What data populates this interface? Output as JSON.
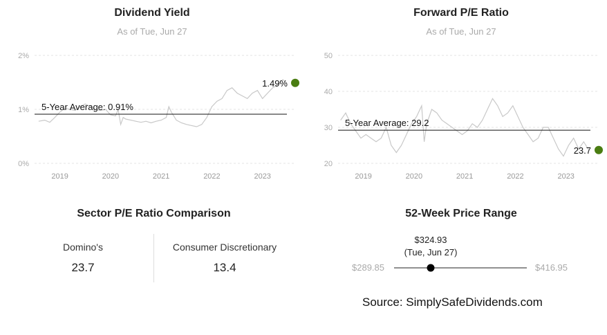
{
  "chart_data": [
    {
      "type": "line",
      "title": "Dividend Yield",
      "subtitle": "As of Tue, Jun 27",
      "x_ticks": [
        "2019",
        "2020",
        "2021",
        "2022",
        "2023"
      ],
      "x_range": [
        2018.5,
        2023.55
      ],
      "y_ticks": [
        "0%",
        "1%",
        "2%"
      ],
      "ylim": [
        0,
        2
      ],
      "average_label": "5-Year Average: 0.91%",
      "average_value": 0.91,
      "current_label": "1.49%",
      "current_value": 1.49,
      "current_color": "#4a7d12",
      "series": [
        {
          "x": [
            2018.58,
            2018.7,
            2018.8,
            2018.9,
            2019.0,
            2019.1,
            2019.2,
            2019.3,
            2019.4,
            2019.5,
            2019.6,
            2019.7,
            2019.8,
            2019.9,
            2020.0,
            2020.1,
            2020.15,
            2020.2,
            2020.25,
            2020.3,
            2020.4,
            2020.5,
            2020.6,
            2020.7,
            2020.8,
            2020.9,
            2021.0,
            2021.1,
            2021.15,
            2021.2,
            2021.3,
            2021.4,
            2021.5,
            2021.6,
            2021.7,
            2021.8,
            2021.9,
            2022.0,
            2022.1,
            2022.2,
            2022.3,
            2022.4,
            2022.5,
            2022.6,
            2022.7,
            2022.8,
            2022.9,
            2023.0,
            2023.1,
            2023.2,
            2023.3,
            2023.4,
            2023.48
          ],
          "values": [
            0.78,
            0.8,
            0.76,
            0.85,
            0.95,
            1.02,
            1.0,
            0.98,
            1.05,
            1.1,
            1.05,
            1.0,
            0.98,
            1.0,
            0.9,
            0.88,
            1.0,
            0.72,
            0.85,
            0.82,
            0.8,
            0.78,
            0.76,
            0.78,
            0.75,
            0.78,
            0.8,
            0.85,
            1.05,
            0.95,
            0.8,
            0.75,
            0.72,
            0.7,
            0.68,
            0.72,
            0.85,
            1.05,
            1.15,
            1.2,
            1.35,
            1.4,
            1.3,
            1.25,
            1.2,
            1.3,
            1.35,
            1.2,
            1.3,
            1.4,
            1.45,
            1.55,
            1.49
          ]
        }
      ]
    },
    {
      "type": "line",
      "title": "Forward P/E Ratio",
      "subtitle": "As of Tue, Jun 27",
      "x_ticks": [
        "2019",
        "2020",
        "2021",
        "2022",
        "2023"
      ],
      "x_range": [
        2018.5,
        2023.55
      ],
      "y_ticks": [
        "20",
        "30",
        "40",
        "50"
      ],
      "ylim": [
        20,
        50
      ],
      "average_label": "5-Year Average: 29.2",
      "average_value": 29.2,
      "current_label": "23.7",
      "current_value": 23.7,
      "current_color": "#4a7d12",
      "series": [
        {
          "x": [
            2018.55,
            2018.65,
            2018.75,
            2018.85,
            2018.95,
            2019.05,
            2019.15,
            2019.25,
            2019.35,
            2019.45,
            2019.55,
            2019.65,
            2019.75,
            2019.85,
            2019.95,
            2020.05,
            2020.15,
            2020.2,
            2020.25,
            2020.35,
            2020.45,
            2020.55,
            2020.65,
            2020.75,
            2020.85,
            2020.95,
            2021.05,
            2021.15,
            2021.25,
            2021.35,
            2021.45,
            2021.55,
            2021.65,
            2021.75,
            2021.85,
            2021.95,
            2022.05,
            2022.15,
            2022.25,
            2022.35,
            2022.45,
            2022.55,
            2022.65,
            2022.75,
            2022.85,
            2022.95,
            2023.05,
            2023.15,
            2023.25,
            2023.35,
            2023.45
          ],
          "values": [
            32,
            34,
            31,
            29,
            27,
            28,
            27,
            26,
            27,
            30,
            25,
            23,
            25,
            28,
            31,
            33,
            36,
            26,
            31,
            35,
            34,
            32,
            31,
            30,
            29,
            28,
            29,
            31,
            30,
            32,
            35,
            38,
            36,
            33,
            34,
            36,
            33,
            30,
            28,
            26,
            27,
            30,
            30,
            27,
            24,
            22,
            25,
            27,
            24,
            26,
            23.7
          ]
        }
      ]
    }
  ],
  "sector": {
    "title": "Sector P/E Ratio Comparison",
    "company_label": "Domino's",
    "company_value": "23.7",
    "sector_label": "Consumer Discretionary",
    "sector_value": "13.4"
  },
  "price_range": {
    "title": "52-Week Price Range",
    "current_price": "$324.93",
    "current_date": "(Tue, Jun 27)",
    "low": "$289.85",
    "high": "$416.95",
    "low_value": 289.85,
    "high_value": 416.95,
    "current_value": 324.93
  },
  "source": "Source: SimplySafeDividends.com"
}
